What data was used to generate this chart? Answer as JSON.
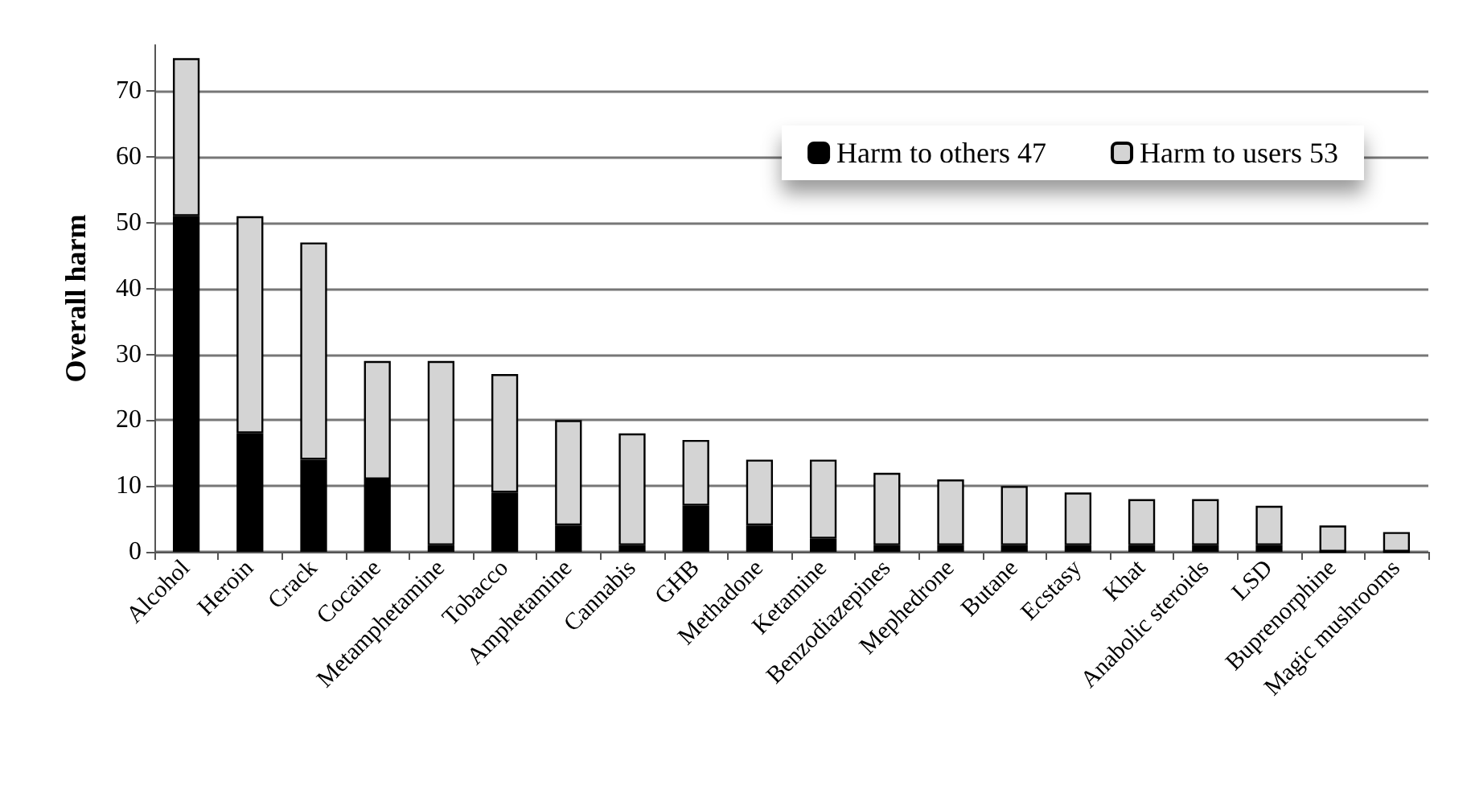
{
  "chart_data": {
    "type": "bar",
    "ylabel": "Overall harm",
    "stacked": true,
    "categories": [
      "Alcohol",
      "Heroin",
      "Crack",
      "Cocaine",
      "Metamphetamine",
      "Tobacco",
      "Amphetamine",
      "Cannabis",
      "GHB",
      "Methadone",
      "Ketamine",
      "Benzodiazepines",
      "Mephedrone",
      "Butane",
      "Ecstasy",
      "Khat",
      "Anabolic steroids",
      "LSD",
      "Buprenorphine",
      "Magic mushrooms"
    ],
    "series": [
      {
        "name": "Harm to others 47",
        "color": "#000000",
        "values": [
          51,
          18,
          14,
          11,
          1,
          9,
          4,
          1,
          7,
          4,
          2,
          1,
          1,
          1,
          1,
          1,
          1,
          1,
          0,
          0
        ]
      },
      {
        "name": "Harm to users 53",
        "color": "#d4d4d4",
        "values": [
          24,
          33,
          33,
          18,
          28,
          18,
          16,
          17,
          10,
          10,
          12,
          11,
          10,
          9,
          8,
          7,
          7,
          6,
          4,
          3
        ]
      }
    ],
    "ylim": [
      0,
      77
    ],
    "yticks": [
      0,
      10,
      20,
      30,
      40,
      50,
      60,
      70
    ],
    "grid": "y",
    "legend": "top right"
  }
}
